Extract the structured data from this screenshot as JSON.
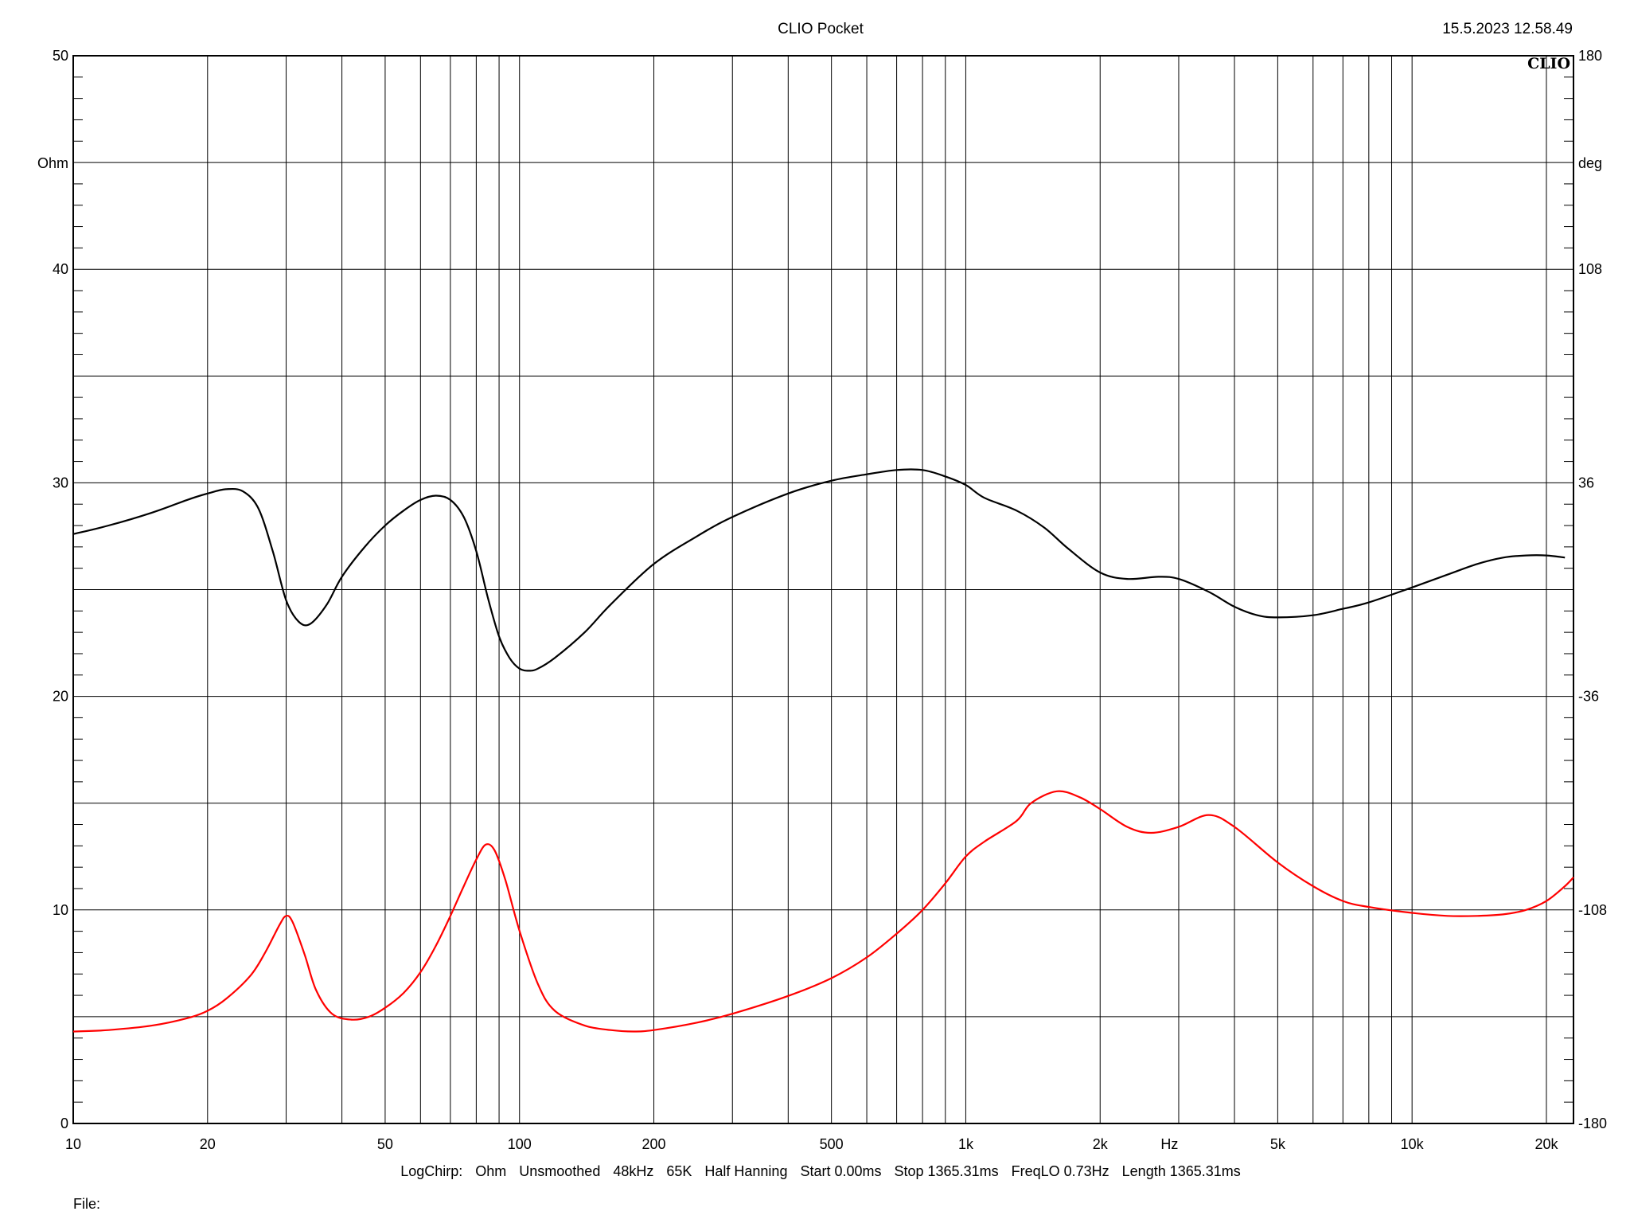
{
  "header": {
    "title": "CLIO Pocket",
    "timestamp": "15.5.2023 12.58.49",
    "logo": "CLIO"
  },
  "footer": {
    "settings": [
      "LogChirp:",
      "Ohm",
      "Unsmoothed",
      "48kHz",
      "65K",
      "Half Hanning",
      "Start 0.00ms",
      "Stop 1365.31ms",
      "FreqLO 0.73Hz",
      "Length 1365.31ms"
    ],
    "file_label": "File:"
  },
  "colors": {
    "impedance": "#000000",
    "phase": "#ff0000",
    "grid": "#000000"
  },
  "chart_data": {
    "type": "line",
    "x_scale": "log",
    "xlim": [
      10,
      23000
    ],
    "ylim_left": [
      0,
      50
    ],
    "ylim_right": [
      -180,
      180
    ],
    "ylabel_left": "Ohm",
    "ylabel_right": "deg",
    "xlabel": "Hz",
    "grid": true,
    "x_ticks": [
      {
        "v": 10,
        "label": "10"
      },
      {
        "v": 20,
        "label": "20"
      },
      {
        "v": 50,
        "label": "50"
      },
      {
        "v": 100,
        "label": "100"
      },
      {
        "v": 200,
        "label": "200"
      },
      {
        "v": 500,
        "label": "500"
      },
      {
        "v": 1000,
        "label": "1k"
      },
      {
        "v": 2000,
        "label": "2k"
      },
      {
        "v": 5000,
        "label": "5k"
      },
      {
        "v": 10000,
        "label": "10k"
      },
      {
        "v": 20000,
        "label": "20k"
      }
    ],
    "x_unit_tick": {
      "v": 2860,
      "label": "Hz"
    },
    "y_left_ticks": [
      {
        "v": 0,
        "label": "0"
      },
      {
        "v": 10,
        "label": "10"
      },
      {
        "v": 20,
        "label": "20"
      },
      {
        "v": 30,
        "label": "30"
      },
      {
        "v": 40,
        "label": "40"
      },
      {
        "v": 50,
        "label": "50"
      }
    ],
    "y_right_ticks": [
      {
        "v": -180,
        "label": "-180"
      },
      {
        "v": -108,
        "label": "-108"
      },
      {
        "v": -36,
        "label": "-36"
      },
      {
        "v": 36,
        "label": "36"
      },
      {
        "v": 108,
        "label": "108"
      },
      {
        "v": 180,
        "label": "180"
      }
    ],
    "series": [
      {
        "axis": "left",
        "color": "#000000",
        "points": [
          [
            10,
            27.6
          ],
          [
            12,
            28.0
          ],
          [
            15,
            28.6
          ],
          [
            18,
            29.2
          ],
          [
            20,
            29.5
          ],
          [
            22,
            29.7
          ],
          [
            24,
            29.6
          ],
          [
            26,
            28.8
          ],
          [
            28,
            26.8
          ],
          [
            30,
            24.5
          ],
          [
            32,
            23.5
          ],
          [
            34,
            23.4
          ],
          [
            37,
            24.3
          ],
          [
            40,
            25.6
          ],
          [
            45,
            27.0
          ],
          [
            50,
            28.0
          ],
          [
            55,
            28.7
          ],
          [
            60,
            29.2
          ],
          [
            65,
            29.4
          ],
          [
            70,
            29.2
          ],
          [
            75,
            28.4
          ],
          [
            80,
            26.8
          ],
          [
            85,
            24.6
          ],
          [
            90,
            22.8
          ],
          [
            95,
            21.8
          ],
          [
            100,
            21.3
          ],
          [
            105,
            21.2
          ],
          [
            110,
            21.3
          ],
          [
            120,
            21.8
          ],
          [
            140,
            23.0
          ],
          [
            160,
            24.3
          ],
          [
            200,
            26.2
          ],
          [
            250,
            27.5
          ],
          [
            300,
            28.4
          ],
          [
            400,
            29.5
          ],
          [
            500,
            30.1
          ],
          [
            600,
            30.4
          ],
          [
            700,
            30.6
          ],
          [
            800,
            30.6
          ],
          [
            900,
            30.3
          ],
          [
            1000,
            29.9
          ],
          [
            1100,
            29.3
          ],
          [
            1300,
            28.7
          ],
          [
            1500,
            27.9
          ],
          [
            1700,
            26.9
          ],
          [
            2000,
            25.8
          ],
          [
            2300,
            25.5
          ],
          [
            2700,
            25.6
          ],
          [
            3000,
            25.5
          ],
          [
            3500,
            24.9
          ],
          [
            4000,
            24.2
          ],
          [
            4500,
            23.8
          ],
          [
            5000,
            23.7
          ],
          [
            6000,
            23.8
          ],
          [
            7000,
            24.1
          ],
          [
            8000,
            24.4
          ],
          [
            10000,
            25.1
          ],
          [
            12000,
            25.7
          ],
          [
            14000,
            26.2
          ],
          [
            16000,
            26.5
          ],
          [
            18000,
            26.6
          ],
          [
            20000,
            26.6
          ],
          [
            22000,
            26.5
          ]
        ]
      },
      {
        "axis": "right",
        "color": "#ff0000",
        "points": [
          [
            10,
            -149
          ],
          [
            12,
            -148.5
          ],
          [
            15,
            -147
          ],
          [
            18,
            -144.5
          ],
          [
            20,
            -142
          ],
          [
            22,
            -138
          ],
          [
            25,
            -130
          ],
          [
            27,
            -122
          ],
          [
            29,
            -113
          ],
          [
            30,
            -110
          ],
          [
            31,
            -112
          ],
          [
            33,
            -123
          ],
          [
            35,
            -135
          ],
          [
            38,
            -143
          ],
          [
            42,
            -145
          ],
          [
            46,
            -144
          ],
          [
            50,
            -141
          ],
          [
            55,
            -136
          ],
          [
            60,
            -129
          ],
          [
            65,
            -120
          ],
          [
            70,
            -110
          ],
          [
            75,
            -100
          ],
          [
            80,
            -91
          ],
          [
            84,
            -86
          ],
          [
            88,
            -88
          ],
          [
            93,
            -98
          ],
          [
            100,
            -115
          ],
          [
            110,
            -133
          ],
          [
            120,
            -142
          ],
          [
            140,
            -147
          ],
          [
            160,
            -148.5
          ],
          [
            180,
            -149
          ],
          [
            200,
            -148.5
          ],
          [
            250,
            -146
          ],
          [
            300,
            -143
          ],
          [
            400,
            -137
          ],
          [
            500,
            -131
          ],
          [
            600,
            -124
          ],
          [
            700,
            -116
          ],
          [
            800,
            -108
          ],
          [
            900,
            -99
          ],
          [
            1000,
            -90
          ],
          [
            1100,
            -85
          ],
          [
            1300,
            -78
          ],
          [
            1400,
            -72
          ],
          [
            1600,
            -68
          ],
          [
            1800,
            -70
          ],
          [
            2000,
            -74
          ],
          [
            2300,
            -80
          ],
          [
            2600,
            -82
          ],
          [
            3000,
            -80
          ],
          [
            3500,
            -76
          ],
          [
            4000,
            -80
          ],
          [
            5000,
            -92
          ],
          [
            6000,
            -100
          ],
          [
            7000,
            -105
          ],
          [
            8000,
            -107
          ],
          [
            10000,
            -109
          ],
          [
            12000,
            -110
          ],
          [
            14000,
            -110
          ],
          [
            16000,
            -109.5
          ],
          [
            18000,
            -108
          ],
          [
            20000,
            -105
          ],
          [
            22000,
            -100
          ],
          [
            23000,
            -97
          ]
        ]
      }
    ]
  }
}
